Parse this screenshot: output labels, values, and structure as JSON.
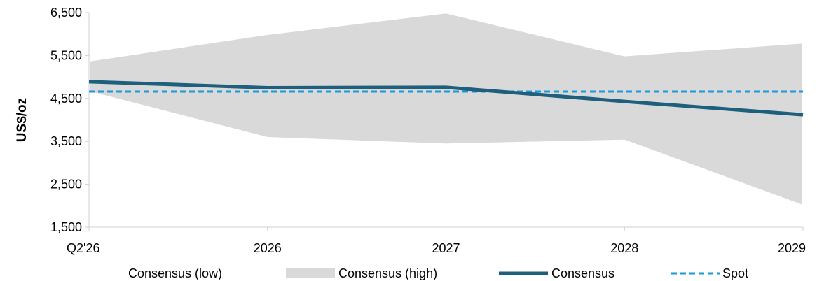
{
  "chart_data": {
    "type": "line",
    "title": "",
    "xlabel": "",
    "ylabel": "US$/oz",
    "categories": [
      "Q2'26",
      "2026",
      "2027",
      "2028",
      "2029"
    ],
    "ylim": [
      1500,
      6500
    ],
    "yticks": [
      1500,
      2500,
      3500,
      4500,
      5500,
      6500
    ],
    "ytick_labels": [
      "1,500",
      "2,500",
      "3,500",
      "4,500",
      "5,500",
      "6,500"
    ],
    "grid": false,
    "legend_position": "bottom",
    "series": [
      {
        "name": "Consensus (low)",
        "role": "band-low",
        "values": [
          4650,
          3580,
          3430,
          3520,
          2000
        ]
      },
      {
        "name": "Consensus (high)",
        "role": "band-high",
        "values": [
          5380,
          6000,
          6500,
          5500,
          5800
        ],
        "color": "#d9d9d9"
      },
      {
        "name": "Consensus",
        "role": "line",
        "values": [
          4890,
          4750,
          4760,
          4430,
          4120
        ],
        "color": "#1f5f7e"
      },
      {
        "name": "Spot",
        "role": "dashed",
        "values": [
          4660,
          4660,
          4660,
          4660,
          4660
        ],
        "color": "#1a9ad6"
      }
    ]
  }
}
